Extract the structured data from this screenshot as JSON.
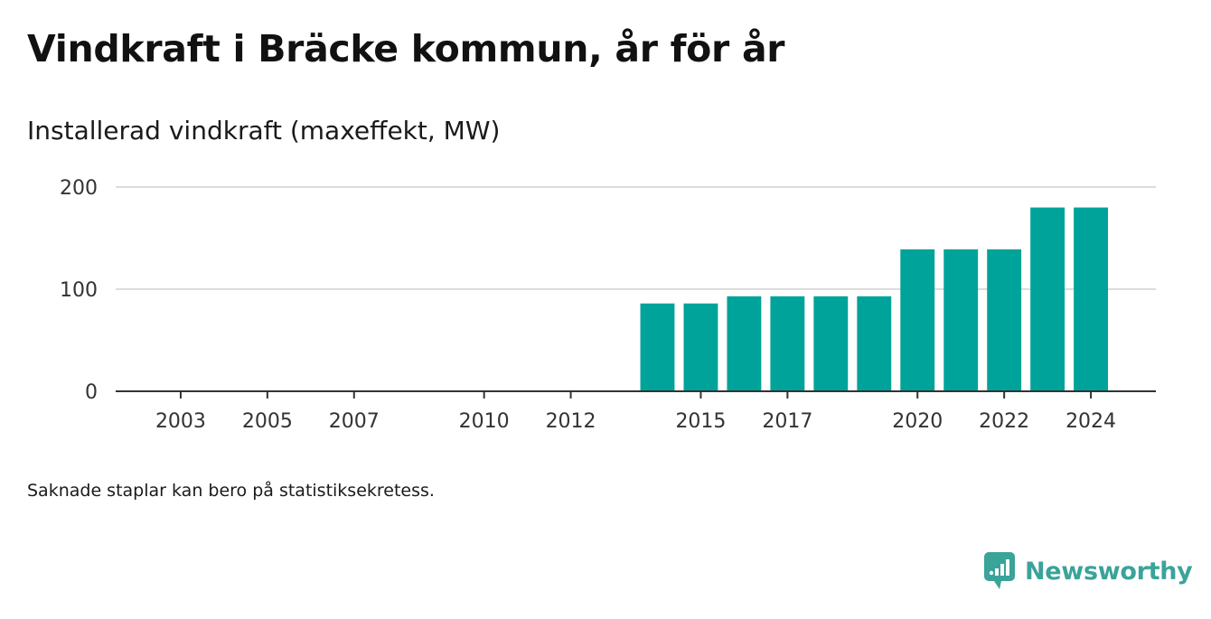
{
  "title": "Vindkraft i Bräcke kommun, år för år",
  "subtitle": "Installerad vindkraft (maxeffekt, MW)",
  "note": "Saknade staplar kan bero på statistiksekretess.",
  "brand": {
    "name": "Newsworthy",
    "icon": "newsworthy-logo-icon",
    "color": "#3aa39a"
  },
  "chart_data": {
    "type": "bar",
    "title": "Vindkraft i Bräcke kommun, år för år",
    "ylabel": "Installerad vindkraft (maxeffekt, MW)",
    "xlabel": "",
    "ylim": [
      0,
      200
    ],
    "yticks": [
      0,
      100,
      200
    ],
    "xlim": [
      2001.5,
      2025.5
    ],
    "xticks": [
      2003,
      2005,
      2007,
      2010,
      2012,
      2015,
      2017,
      2020,
      2022,
      2024
    ],
    "bar_color": "#00a39a",
    "grid": true,
    "legend": "none",
    "x": [
      2014,
      2015,
      2016,
      2017,
      2018,
      2019,
      2020,
      2021,
      2022,
      2023,
      2024
    ],
    "values": [
      86,
      86,
      93,
      93,
      93,
      93,
      139,
      139,
      139,
      180,
      180
    ]
  }
}
